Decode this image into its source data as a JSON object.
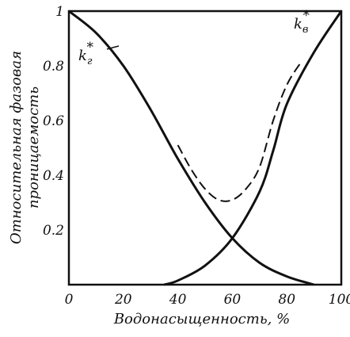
{
  "chart_data": {
    "type": "line",
    "xlabel": "Водонасыщенность, %",
    "ylabel_line1": "Относительная фазовая",
    "ylabel_line2": "проницаемость",
    "xlim": [
      0,
      100
    ],
    "ylim": [
      0,
      1
    ],
    "x_ticks": [
      "0",
      "20",
      "40",
      "60",
      "80",
      "100"
    ],
    "y_ticks": [
      "0.2",
      "0.4",
      "0.6",
      "0.8",
      "1"
    ],
    "grid": false,
    "series": [
      {
        "name": "k*г",
        "style": "solid",
        "points": [
          [
            0,
            1
          ],
          [
            10,
            0.92
          ],
          [
            20,
            0.8
          ],
          [
            30,
            0.64
          ],
          [
            40,
            0.46
          ],
          [
            50,
            0.3
          ],
          [
            60,
            0.17
          ],
          [
            70,
            0.08
          ],
          [
            80,
            0.03
          ],
          [
            90,
            0.0
          ]
        ]
      },
      {
        "name": "k*в",
        "style": "solid",
        "points": [
          [
            35,
            0.0
          ],
          [
            40,
            0.015
          ],
          [
            50,
            0.07
          ],
          [
            60,
            0.17
          ],
          [
            70,
            0.34
          ],
          [
            75,
            0.49
          ],
          [
            80,
            0.66
          ],
          [
            90,
            0.85
          ],
          [
            100,
            1
          ]
        ]
      },
      {
        "name": "",
        "style": "dashed",
        "points": [
          [
            40,
            0.51
          ],
          [
            45,
            0.42
          ],
          [
            50,
            0.35
          ],
          [
            55,
            0.31
          ],
          [
            60,
            0.31
          ],
          [
            65,
            0.35
          ],
          [
            70,
            0.43
          ],
          [
            75,
            0.6
          ],
          [
            80,
            0.73
          ],
          [
            85,
            0.81
          ]
        ]
      }
    ],
    "labels": {
      "gas_k": "k",
      "gas_sub": "г",
      "water_k": "k",
      "water_sub": "в",
      "star": "*"
    }
  }
}
